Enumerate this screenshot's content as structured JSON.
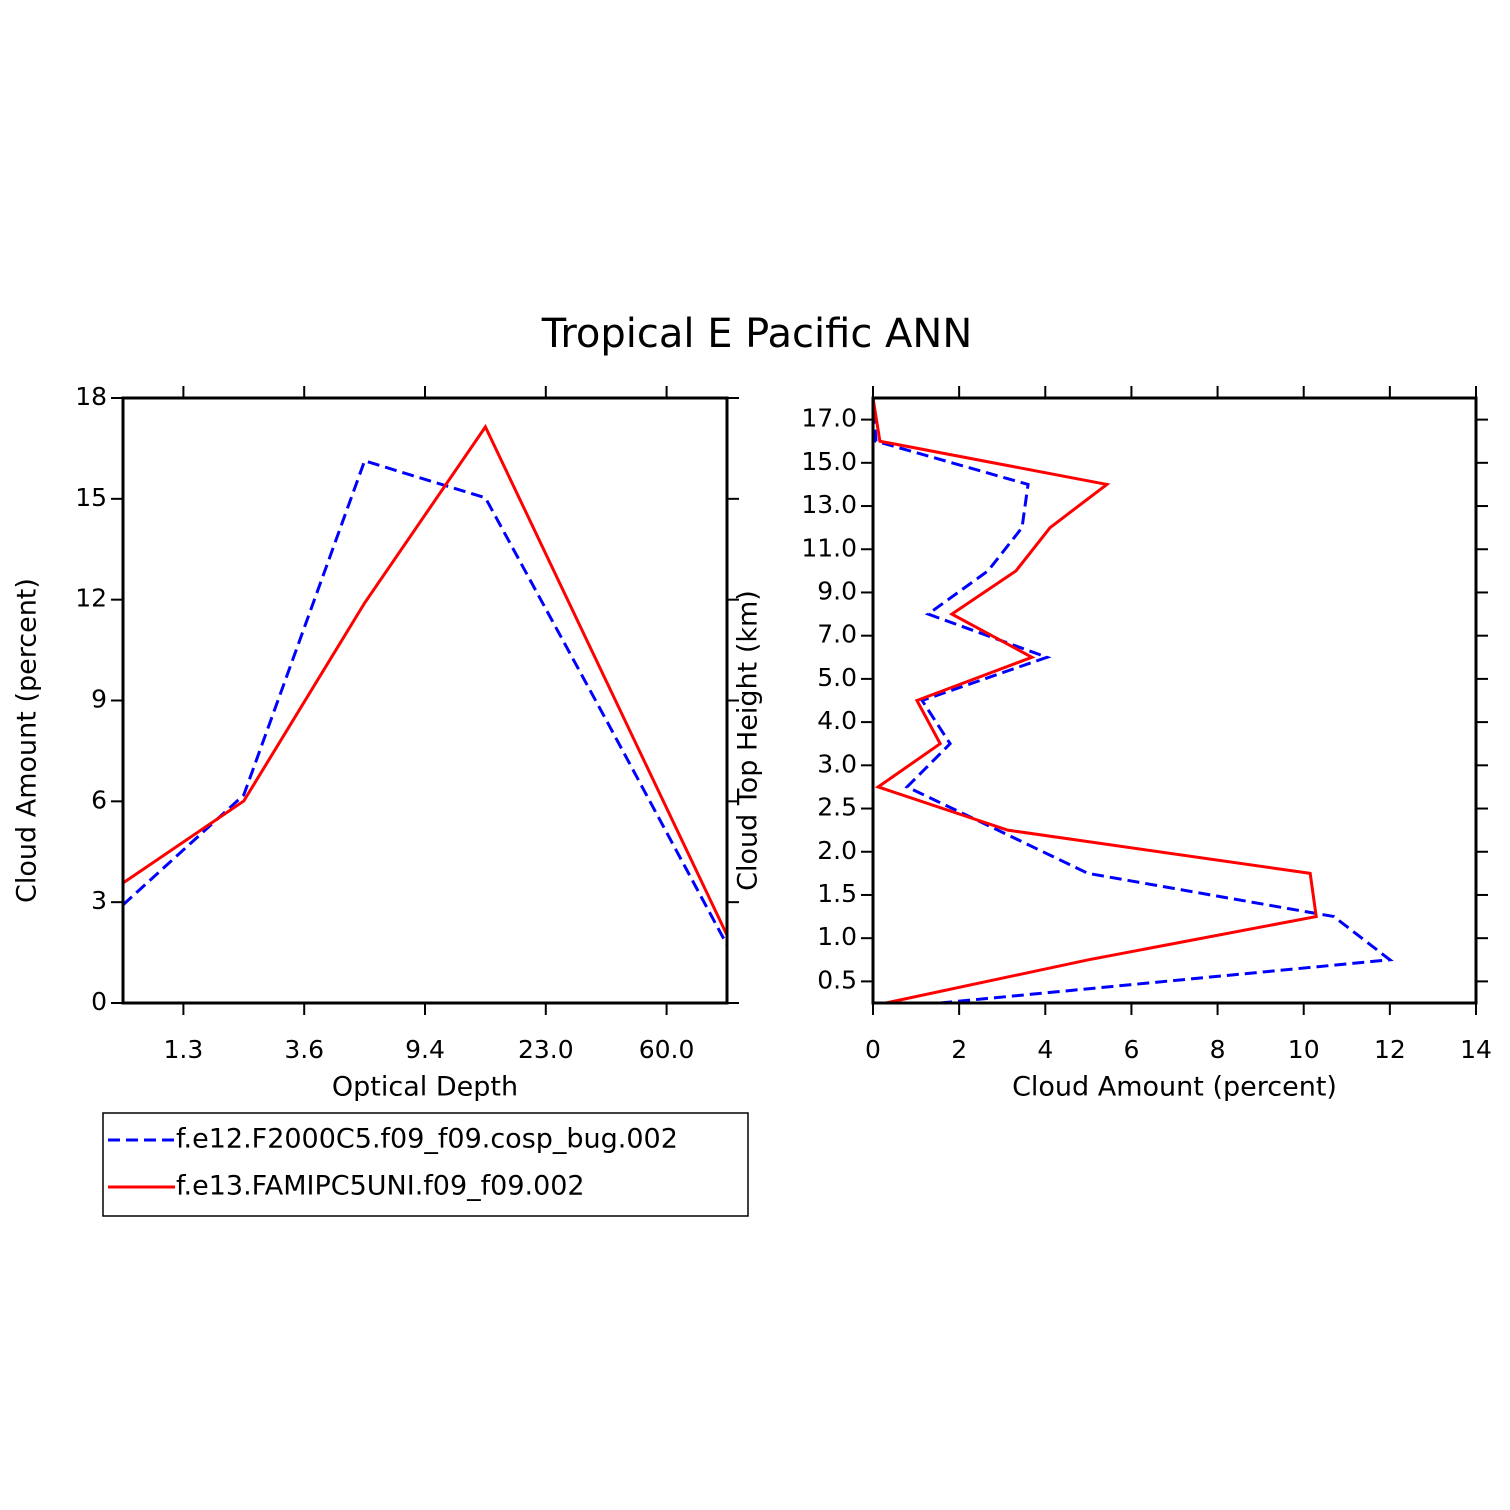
{
  "title": "Tropical E Pacific ANN",
  "chart_data": [
    {
      "type": "line",
      "xlabel": "Optical Depth",
      "ylabel": "Cloud Amount (percent)",
      "x": [
        0,
        1,
        2,
        3,
        4,
        5
      ],
      "xlim": [
        0,
        5
      ],
      "xticks": [
        {
          "value": 0.5,
          "label": "1.3"
        },
        {
          "value": 1.5,
          "label": "3.6"
        },
        {
          "value": 2.5,
          "label": "9.4"
        },
        {
          "value": 3.5,
          "label": "23.0"
        },
        {
          "value": 4.5,
          "label": "60.0"
        }
      ],
      "ylim": [
        0,
        18
      ],
      "yticks": [
        0,
        3,
        6,
        9,
        12,
        15,
        18
      ],
      "series": [
        {
          "name": "f.e12.F2000C5.f09_f09.cosp_bug.002",
          "color": "#0000ff",
          "dashed": true,
          "values": [
            2.92,
            6.19,
            16.13,
            15.03,
            8.42,
            1.73
          ]
        },
        {
          "name": "f.e13.FAMIPC5UNI.f09_f09.002",
          "color": "#ff0000",
          "dashed": false,
          "values": [
            3.57,
            6.01,
            11.9,
            17.14,
            9.58,
            2.02
          ]
        }
      ]
    },
    {
      "type": "line",
      "orientation": "horizontal",
      "xlabel": "Cloud Amount (percent)",
      "ylabel": "Cloud Top Height (km)",
      "y": [
        0,
        1,
        2,
        3,
        4,
        5,
        6,
        7,
        8,
        9,
        10,
        11,
        12,
        13,
        14
      ],
      "ylim": [
        0,
        14
      ],
      "yticks": [
        {
          "value": 0.5,
          "label": "0.5"
        },
        {
          "value": 1.5,
          "label": "1.0"
        },
        {
          "value": 2.5,
          "label": "1.5"
        },
        {
          "value": 3.5,
          "label": "2.0"
        },
        {
          "value": 4.5,
          "label": "2.5"
        },
        {
          "value": 5.5,
          "label": "3.0"
        },
        {
          "value": 6.5,
          "label": "4.0"
        },
        {
          "value": 7.5,
          "label": "5.0"
        },
        {
          "value": 8.5,
          "label": "7.0"
        },
        {
          "value": 9.5,
          "label": "9.0"
        },
        {
          "value": 10.5,
          "label": "11.0"
        },
        {
          "value": 11.5,
          "label": "13.0"
        },
        {
          "value": 12.5,
          "label": "15.0"
        },
        {
          "value": 13.5,
          "label": "17.0"
        }
      ],
      "xlim": [
        0,
        14
      ],
      "xticks": [
        0,
        2,
        4,
        6,
        8,
        10,
        12,
        14
      ],
      "series": [
        {
          "color": "#0000ff",
          "dashed": true,
          "values": [
            1.56,
            12.0,
            10.7,
            4.99,
            2.9,
            0.79,
            1.79,
            1.14,
            4.04,
            1.28,
            2.67,
            3.46,
            3.6,
            0.07,
            0
          ]
        },
        {
          "color": "#ff0000",
          "dashed": false,
          "values": [
            0.3,
            5.0,
            10.29,
            10.15,
            3.13,
            0.12,
            1.56,
            1.02,
            3.69,
            1.83,
            3.32,
            4.11,
            5.43,
            0.16,
            0
          ]
        }
      ]
    }
  ]
}
